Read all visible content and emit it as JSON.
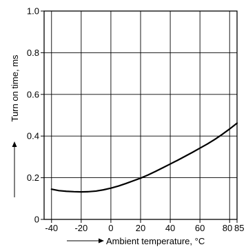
{
  "chart_data": {
    "type": "line",
    "title": "",
    "xlabel": "Ambient temperature, °C",
    "ylabel": "Turn on time, ms",
    "xlim": [
      -45,
      85
    ],
    "ylim": [
      0,
      1.0
    ],
    "grid": true,
    "x_ticks": [
      {
        "value": -40,
        "label": "-40"
      },
      {
        "value": -20,
        "label": "-20"
      },
      {
        "value": 0,
        "label": "0"
      },
      {
        "value": 20,
        "label": "20"
      },
      {
        "value": 40,
        "label": "40"
      },
      {
        "value": 60,
        "label": "60"
      },
      {
        "value": 80,
        "label": "80"
      },
      {
        "value": 85,
        "label": "85"
      }
    ],
    "x_gridlines": [
      -40,
      -20,
      0,
      20,
      40,
      60,
      80,
      85
    ],
    "y_ticks": [
      {
        "value": 0,
        "label": "0"
      },
      {
        "value": 0.2,
        "label": "0.2"
      },
      {
        "value": 0.4,
        "label": "0.4"
      },
      {
        "value": 0.6,
        "label": "0.6"
      },
      {
        "value": 0.8,
        "label": "0.8"
      },
      {
        "value": 1.0,
        "label": "1.0"
      }
    ],
    "series": [
      {
        "x": [
          -40,
          -35,
          -30,
          -25,
          -20,
          -15,
          -10,
          -5,
          0,
          5,
          10,
          15,
          20,
          25,
          30,
          35,
          40,
          45,
          50,
          55,
          60,
          65,
          70,
          75,
          80,
          85
        ],
        "y": [
          0.145,
          0.138,
          0.135,
          0.133,
          0.132,
          0.133,
          0.136,
          0.142,
          0.15,
          0.16,
          0.172,
          0.185,
          0.198,
          0.213,
          0.23,
          0.248,
          0.266,
          0.284,
          0.303,
          0.322,
          0.342,
          0.362,
          0.384,
          0.408,
          0.434,
          0.462
        ]
      }
    ]
  }
}
